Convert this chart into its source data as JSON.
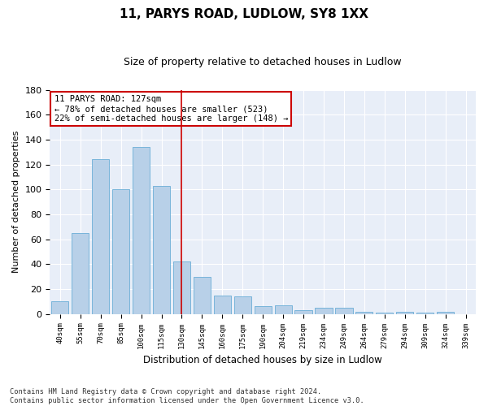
{
  "title": "11, PARYS ROAD, LUDLOW, SY8 1XX",
  "subtitle": "Size of property relative to detached houses in Ludlow",
  "xlabel": "Distribution of detached houses by size in Ludlow",
  "ylabel": "Number of detached properties",
  "categories": [
    "40sqm",
    "55sqm",
    "70sqm",
    "85sqm",
    "100sqm",
    "115sqm",
    "130sqm",
    "145sqm",
    "160sqm",
    "175sqm",
    "190sqm",
    "204sqm",
    "219sqm",
    "234sqm",
    "249sqm",
    "264sqm",
    "279sqm",
    "294sqm",
    "309sqm",
    "324sqm",
    "339sqm"
  ],
  "values": [
    10,
    65,
    124,
    100,
    134,
    103,
    42,
    30,
    15,
    14,
    6,
    7,
    3,
    5,
    5,
    2,
    1,
    2,
    1,
    2,
    0
  ],
  "bar_color": "#b8d0e8",
  "bar_edge_color": "#6aaed6",
  "vline_x": 6,
  "annotation_lines": [
    "11 PARYS ROAD: 127sqm",
    "← 78% of detached houses are smaller (523)",
    "22% of semi-detached houses are larger (148) →"
  ],
  "annotation_box_color": "#cc0000",
  "ylim": [
    0,
    180
  ],
  "yticks": [
    0,
    20,
    40,
    60,
    80,
    100,
    120,
    140,
    160,
    180
  ],
  "footer_line1": "Contains HM Land Registry data © Crown copyright and database right 2024.",
  "footer_line2": "Contains public sector information licensed under the Open Government Licence v3.0.",
  "background_color": "#e8eef8"
}
